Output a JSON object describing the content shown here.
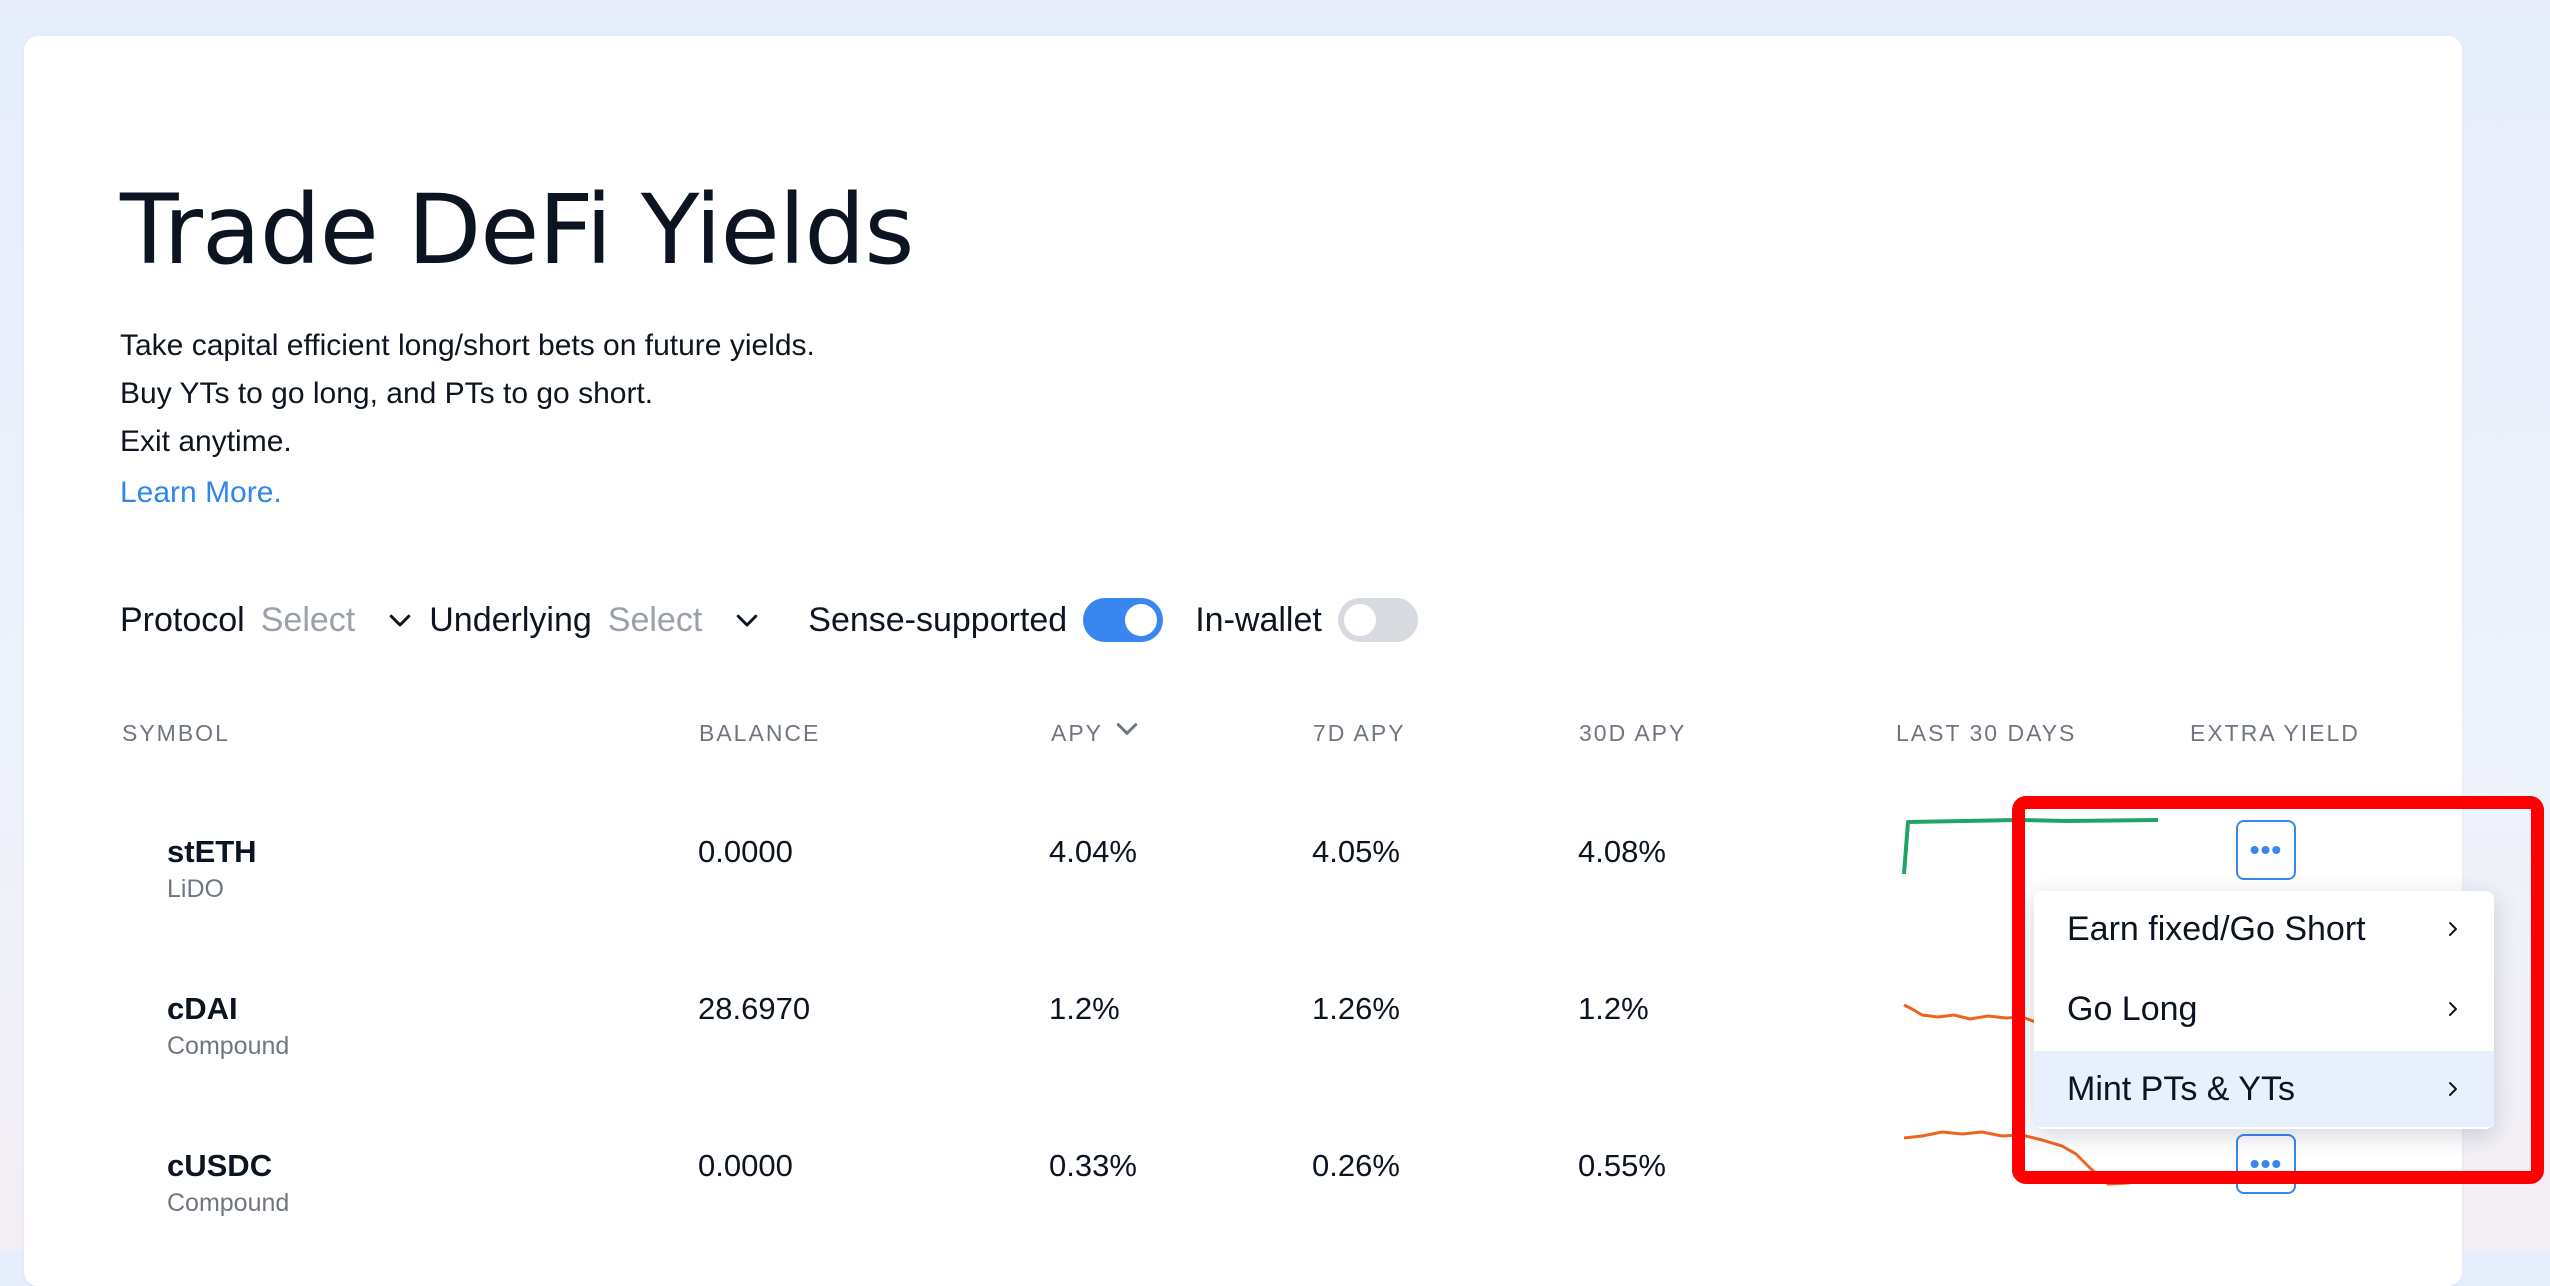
{
  "header": {
    "title": "Trade DeFi Yields",
    "desc_line1": "Take capital efficient long/short bets on future yields.",
    "desc_line2": "Buy YTs to go long, and PTs to go short.",
    "desc_line3": "Exit anytime.",
    "learn_more": "Learn More."
  },
  "filters": {
    "protocol_label": "Protocol",
    "protocol_value": "Select",
    "underlying_label": "Underlying",
    "underlying_value": "Select",
    "sense_supported_label": "Sense-supported",
    "sense_supported_on": true,
    "in_wallet_label": "In-wallet",
    "in_wallet_on": false
  },
  "table": {
    "headers": {
      "symbol": "SYMBOL",
      "balance": "BALANCE",
      "apy": "APY",
      "apy7d": "7D APY",
      "apy30d": "30D APY",
      "last30": "LAST 30 DAYS",
      "extra": "EXTRA YIELD"
    },
    "rows": [
      {
        "symbol": "stETH",
        "protocol": "LiDO",
        "balance": "0.0000",
        "apy": "4.04%",
        "apy7d": "4.05%",
        "apy30d": "4.08%",
        "trend_color": "#1fa463"
      },
      {
        "symbol": "cDAI",
        "protocol": "Compound",
        "balance": "28.6970",
        "apy": "1.2%",
        "apy7d": "1.26%",
        "apy30d": "1.2%",
        "trend_color": "#f0631e"
      },
      {
        "symbol": "cUSDC",
        "protocol": "Compound",
        "balance": "0.0000",
        "apy": "0.33%",
        "apy7d": "0.26%",
        "apy30d": "0.55%",
        "trend_color": "#f0631e"
      }
    ]
  },
  "row_menu": {
    "items": [
      {
        "label": "Earn fixed/Go Short"
      },
      {
        "label": "Go Long"
      },
      {
        "label": "Mint PTs & YTs",
        "highlighted": true
      }
    ]
  },
  "colors": {
    "accent": "#3a86f0",
    "link": "#2f86eb",
    "highlight_box": "#ff0000"
  }
}
